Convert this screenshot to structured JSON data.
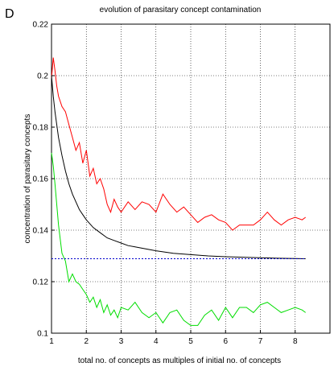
{
  "panel_label": "D",
  "chart_data": {
    "type": "line",
    "title": "evolution of parasitary concept contamination",
    "xlabel": "total no. of concepts as multiples of initial no. of concepts",
    "ylabel": "concentration of parasitary concepts",
    "xlim": [
      1,
      9
    ],
    "ylim": [
      0.1,
      0.22
    ],
    "xticks": [
      1,
      2,
      3,
      4,
      5,
      6,
      7,
      8
    ],
    "xtick_labels": [
      "1",
      "2",
      "3",
      "4",
      "5",
      "6",
      "7",
      "8"
    ],
    "yticks": [
      0.1,
      0.12,
      0.14,
      0.16,
      0.18,
      0.2,
      0.22
    ],
    "ytick_labels": [
      "0.1",
      "0.12",
      "0.14",
      "0.16",
      "0.18",
      "0.2",
      "0.22"
    ],
    "grid": true,
    "series": [
      {
        "color": "#ff0000",
        "style": "solid",
        "x": [
          1.0,
          1.05,
          1.1,
          1.15,
          1.2,
          1.3,
          1.4,
          1.5,
          1.6,
          1.7,
          1.8,
          1.9,
          2.0,
          2.1,
          2.2,
          2.3,
          2.4,
          2.5,
          2.6,
          2.7,
          2.8,
          2.9,
          3.0,
          3.2,
          3.4,
          3.6,
          3.8,
          4.0,
          4.2,
          4.4,
          4.6,
          4.8,
          5.0,
          5.2,
          5.4,
          5.6,
          5.8,
          6.0,
          6.2,
          6.4,
          6.6,
          6.8,
          7.0,
          7.2,
          7.4,
          7.6,
          7.8,
          8.0,
          8.2,
          8.3
        ],
        "y": [
          0.199,
          0.207,
          0.202,
          0.196,
          0.192,
          0.188,
          0.186,
          0.181,
          0.176,
          0.171,
          0.174,
          0.166,
          0.171,
          0.161,
          0.164,
          0.158,
          0.16,
          0.156,
          0.15,
          0.147,
          0.152,
          0.149,
          0.147,
          0.151,
          0.148,
          0.151,
          0.15,
          0.147,
          0.154,
          0.15,
          0.147,
          0.149,
          0.146,
          0.143,
          0.145,
          0.146,
          0.144,
          0.143,
          0.14,
          0.142,
          0.142,
          0.142,
          0.144,
          0.147,
          0.144,
          0.142,
          0.144,
          0.145,
          0.144,
          0.145
        ]
      },
      {
        "color": "#00dd00",
        "style": "solid",
        "x": [
          1.0,
          1.05,
          1.1,
          1.15,
          1.2,
          1.3,
          1.4,
          1.5,
          1.6,
          1.7,
          1.8,
          1.9,
          2.0,
          2.1,
          2.2,
          2.3,
          2.4,
          2.5,
          2.6,
          2.7,
          2.8,
          2.9,
          3.0,
          3.2,
          3.4,
          3.6,
          3.8,
          4.0,
          4.2,
          4.4,
          4.6,
          4.8,
          5.0,
          5.2,
          5.4,
          5.6,
          5.8,
          6.0,
          6.2,
          6.4,
          6.6,
          6.8,
          7.0,
          7.2,
          7.4,
          7.6,
          7.8,
          8.0,
          8.2,
          8.3
        ],
        "y": [
          0.17,
          0.165,
          0.158,
          0.15,
          0.142,
          0.131,
          0.128,
          0.12,
          0.123,
          0.12,
          0.119,
          0.117,
          0.115,
          0.112,
          0.114,
          0.11,
          0.113,
          0.108,
          0.111,
          0.107,
          0.109,
          0.106,
          0.11,
          0.109,
          0.112,
          0.108,
          0.106,
          0.108,
          0.104,
          0.108,
          0.109,
          0.105,
          0.103,
          0.103,
          0.107,
          0.109,
          0.105,
          0.11,
          0.106,
          0.11,
          0.11,
          0.108,
          0.111,
          0.112,
          0.11,
          0.108,
          0.109,
          0.11,
          0.109,
          0.108
        ]
      },
      {
        "color": "#000000",
        "style": "solid",
        "x": [
          1.0,
          1.05,
          1.1,
          1.15,
          1.2,
          1.3,
          1.4,
          1.5,
          1.6,
          1.7,
          1.8,
          1.9,
          2.0,
          2.2,
          2.4,
          2.6,
          2.8,
          3.0,
          3.2,
          3.4,
          3.6,
          3.8,
          4.0,
          4.5,
          5.0,
          5.5,
          6.0,
          6.5,
          7.0,
          7.5,
          8.0,
          8.3
        ],
        "y": [
          0.2,
          0.192,
          0.186,
          0.181,
          0.176,
          0.169,
          0.163,
          0.158,
          0.154,
          0.151,
          0.148,
          0.146,
          0.144,
          0.141,
          0.139,
          0.137,
          0.136,
          0.135,
          0.134,
          0.1335,
          0.133,
          0.1325,
          0.132,
          0.131,
          0.1305,
          0.13,
          0.1297,
          0.1295,
          0.1293,
          0.1291,
          0.129,
          0.1289
        ]
      },
      {
        "color": "#0000cc",
        "style": "dashed",
        "x": [
          1,
          8.3
        ],
        "y": [
          0.1289,
          0.1289
        ]
      }
    ]
  }
}
